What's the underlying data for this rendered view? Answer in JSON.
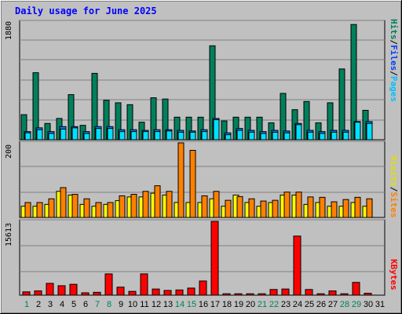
{
  "title": "Daily usage for June 2025",
  "colors": {
    "hits": "#00805c",
    "files": "#00c0ff",
    "pages": "#00e0ff",
    "visits": "#ffff00",
    "sites": "#ff8000",
    "kbytes": "#ff0000",
    "weekend_label": "#00805c",
    "title": "#0000ff"
  },
  "labels": {
    "pages": "Pages",
    "files": "Files",
    "hits": "Hits",
    "visits": "Visits",
    "sites": "Sites",
    "kbytes": "KBytes",
    "sep": "/"
  },
  "chart_data": [
    {
      "type": "bar",
      "title": "Pages / Files / Hits",
      "ymax_label": "1880",
      "ylim": [
        0,
        1880
      ],
      "categories": [
        "1",
        "2",
        "3",
        "4",
        "5",
        "6",
        "7",
        "8",
        "9",
        "10",
        "11",
        "12",
        "13",
        "14",
        "15",
        "16",
        "17",
        "18",
        "19",
        "20",
        "21",
        "22",
        "23",
        "24",
        "25",
        "26",
        "27",
        "28",
        "29",
        "30",
        "31"
      ],
      "weekend_days": [
        "1",
        "7",
        "8",
        "14",
        "15",
        "21",
        "22",
        "28",
        "29"
      ],
      "series": [
        {
          "name": "Hits",
          "values": [
            400,
            1070,
            260,
            340,
            720,
            230,
            1060,
            630,
            590,
            560,
            280,
            670,
            650,
            360,
            360,
            360,
            1500,
            300,
            360,
            360,
            360,
            270,
            740,
            480,
            610,
            270,
            590,
            1130,
            1840,
            470,
            0
          ]
        },
        {
          "name": "Files",
          "values": [
            130,
            190,
            130,
            210,
            210,
            130,
            210,
            210,
            160,
            160,
            150,
            160,
            160,
            150,
            140,
            160,
            340,
            110,
            180,
            150,
            130,
            150,
            140,
            260,
            150,
            130,
            150,
            150,
            290,
            290,
            0
          ]
        },
        {
          "name": "Pages",
          "values": [
            110,
            160,
            100,
            170,
            190,
            100,
            180,
            180,
            130,
            130,
            130,
            130,
            140,
            120,
            120,
            130,
            320,
            80,
            150,
            120,
            100,
            120,
            110,
            240,
            120,
            100,
            120,
            120,
            280,
            260,
            0
          ]
        }
      ]
    },
    {
      "type": "bar",
      "title": "Sites / Visits",
      "ymax_label": "200",
      "ylim": [
        0,
        200
      ],
      "categories": [
        "1",
        "2",
        "3",
        "4",
        "5",
        "6",
        "7",
        "8",
        "9",
        "10",
        "11",
        "12",
        "13",
        "14",
        "15",
        "16",
        "17",
        "18",
        "19",
        "20",
        "21",
        "22",
        "23",
        "24",
        "25",
        "26",
        "27",
        "28",
        "29",
        "30",
        "31"
      ],
      "series": [
        {
          "name": "Visits",
          "values": [
            30,
            30,
            35,
            70,
            60,
            35,
            30,
            35,
            45,
            55,
            55,
            65,
            60,
            40,
            40,
            40,
            50,
            30,
            60,
            40,
            30,
            40,
            60,
            60,
            35,
            40,
            30,
            30,
            40,
            30,
            0
          ]
        },
        {
          "name": "Sites",
          "values": [
            40,
            40,
            50,
            80,
            62,
            50,
            40,
            40,
            58,
            62,
            70,
            85,
            70,
            200,
            180,
            58,
            70,
            46,
            56,
            50,
            44,
            46,
            68,
            68,
            55,
            54,
            42,
            48,
            54,
            50,
            0
          ]
        }
      ]
    },
    {
      "type": "bar",
      "title": "KBytes",
      "ymax_label": "15613",
      "ylim": [
        0,
        15613
      ],
      "categories": [
        "1",
        "2",
        "3",
        "4",
        "5",
        "6",
        "7",
        "8",
        "9",
        "10",
        "11",
        "12",
        "13",
        "14",
        "15",
        "16",
        "17",
        "18",
        "19",
        "20",
        "21",
        "22",
        "23",
        "24",
        "25",
        "26",
        "27",
        "28",
        "29",
        "30",
        "31"
      ],
      "series": [
        {
          "name": "KBytes",
          "values": [
            700,
            900,
            2500,
            2000,
            2300,
            500,
            600,
            4500,
            1700,
            800,
            4500,
            1300,
            1000,
            1100,
            1500,
            3000,
            15613,
            300,
            300,
            300,
            300,
            1200,
            1300,
            12500,
            1200,
            300,
            900,
            300,
            2700,
            400,
            0
          ]
        }
      ]
    }
  ]
}
